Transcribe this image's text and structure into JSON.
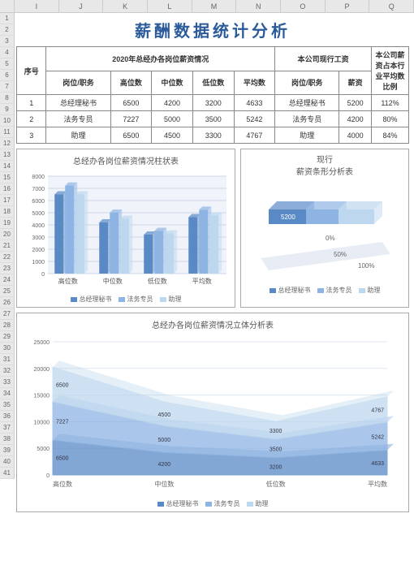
{
  "columns": [
    "I",
    "J",
    "K",
    "L",
    "M",
    "N",
    "O",
    "P",
    "Q"
  ],
  "rows": [
    "1",
    "2",
    "3",
    "4",
    "5",
    "6",
    "7",
    "8",
    "9",
    "10",
    "11",
    "12",
    "13",
    "14",
    "15",
    "16",
    "17",
    "18",
    "19",
    "20",
    "21",
    "22",
    "23",
    "24",
    "25",
    "26",
    "27",
    "28",
    "29",
    "30",
    "31",
    "32",
    "33",
    "34",
    "35",
    "36",
    "37",
    "38",
    "39",
    "40",
    "41"
  ],
  "title": "薪酬数据统计分析",
  "table": {
    "h_seq": "序号",
    "h_group1": "2020年总经办各岗位薪资情况",
    "h_group2": "本公司现行工资",
    "h_ratio": "本公司薪资占本行业平均数比例",
    "sub": [
      "岗位/职务",
      "高位数",
      "中位数",
      "低位数",
      "平均数",
      "岗位/职务",
      "薪资"
    ],
    "rows": [
      {
        "seq": "1",
        "pos": "总经理秘书",
        "high": "6500",
        "mid": "4200",
        "low": "3200",
        "avg": "4633",
        "pos2": "总经理秘书",
        "sal": "5200",
        "ratio": "112%"
      },
      {
        "seq": "2",
        "pos": "法务专员",
        "high": "7227",
        "mid": "5000",
        "low": "3500",
        "avg": "5242",
        "pos2": "法务专员",
        "sal": "4200",
        "ratio": "80%"
      },
      {
        "seq": "3",
        "pos": "助理",
        "high": "6500",
        "mid": "4500",
        "low": "3300",
        "avg": "4767",
        "pos2": "助理",
        "sal": "4000",
        "ratio": "84%"
      }
    ]
  },
  "bar_chart": {
    "title": "总经办各岗位薪资情况柱状表",
    "categories": [
      "高位数",
      "中位数",
      "低位数",
      "平均数"
    ],
    "series": [
      {
        "name": "总经理秘书",
        "color": "#5a8ac6",
        "values": [
          6500,
          4200,
          3200,
          4633
        ]
      },
      {
        "name": "法务专员",
        "color": "#8eb4e3",
        "values": [
          7227,
          5000,
          3500,
          5242
        ]
      },
      {
        "name": "助理",
        "color": "#bdd7ee",
        "values": [
          6500,
          4500,
          3300,
          4767
        ]
      }
    ],
    "ylim": 8000,
    "ystep": 1000,
    "grid_color": "#ccd6e6",
    "bg": "#f0f4fa"
  },
  "bar3d_chart": {
    "title1": "现行",
    "title2": "薪资条形分析表",
    "label": "5200",
    "ticks": [
      "0%",
      "50%",
      "100%"
    ],
    "colors": [
      "#5a8ac6",
      "#8eb4e3",
      "#bdd7ee"
    ],
    "legend": [
      "总经理秘书",
      "法务专员",
      "助理"
    ]
  },
  "area_chart": {
    "title": "总经办各岗位薪资情况立体分析表",
    "categories": [
      "高位数",
      "中位数",
      "低位数",
      "平均数"
    ],
    "ylim": 25000,
    "ystep": 5000,
    "series": [
      {
        "name": "总经理秘书",
        "color": "#5a8ac6",
        "values": [
          6500,
          4200,
          3200,
          4633
        ]
      },
      {
        "name": "法务专员",
        "color": "#8eb4e3",
        "values": [
          7227,
          5000,
          3500,
          5242
        ]
      },
      {
        "name": "助理",
        "color": "#bdd7ee",
        "values": [
          6500,
          4500,
          3300,
          4767
        ]
      }
    ],
    "stack_labels_left": [
      "6500",
      "7227",
      "6500"
    ],
    "stack_labels_mid": [
      "4200",
      "5000",
      "4500"
    ],
    "stack_labels_low": [
      "3200",
      "3500",
      "3300"
    ],
    "stack_labels_avg": [
      "4633",
      "5242",
      "4767"
    ],
    "legend": [
      "总经理秘书",
      "法务专员",
      "助理"
    ]
  }
}
